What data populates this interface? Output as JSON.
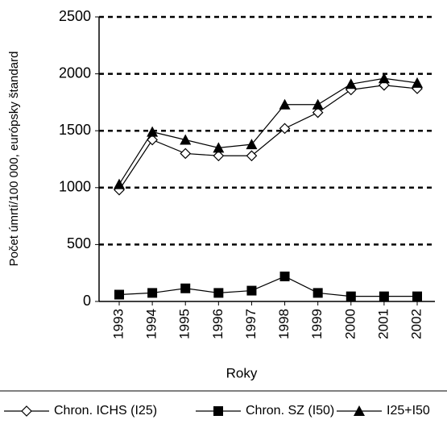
{
  "chart_data": {
    "type": "line",
    "x_label": "Roky",
    "y_label": "Počet úmrtí/100 000, európsky štandard",
    "categories": [
      "1993",
      "1994",
      "1995",
      "1996",
      "1997",
      "1998",
      "1999",
      "2000",
      "2001",
      "2002"
    ],
    "series": [
      {
        "name": "Chron. ICHS (I25)",
        "color": "#000000",
        "marker": "diamond",
        "values": [
          980,
          1420,
          1300,
          1280,
          1280,
          1520,
          1660,
          1860,
          1900,
          1870
        ]
      },
      {
        "name": "Chron. SZ (I50)",
        "color": "#000000",
        "marker": "square",
        "values": [
          60,
          75,
          115,
          75,
          95,
          220,
          75,
          45,
          45,
          45
        ]
      },
      {
        "name": "I25+I50",
        "color": "#000000",
        "marker": "triangle",
        "values": [
          1030,
          1490,
          1420,
          1350,
          1380,
          1730,
          1730,
          1910,
          1960,
          1920
        ]
      }
    ],
    "ylim": [
      0,
      2500
    ],
    "yticks": [
      0,
      500,
      1000,
      1500,
      2000,
      2500
    ],
    "grid": true
  }
}
